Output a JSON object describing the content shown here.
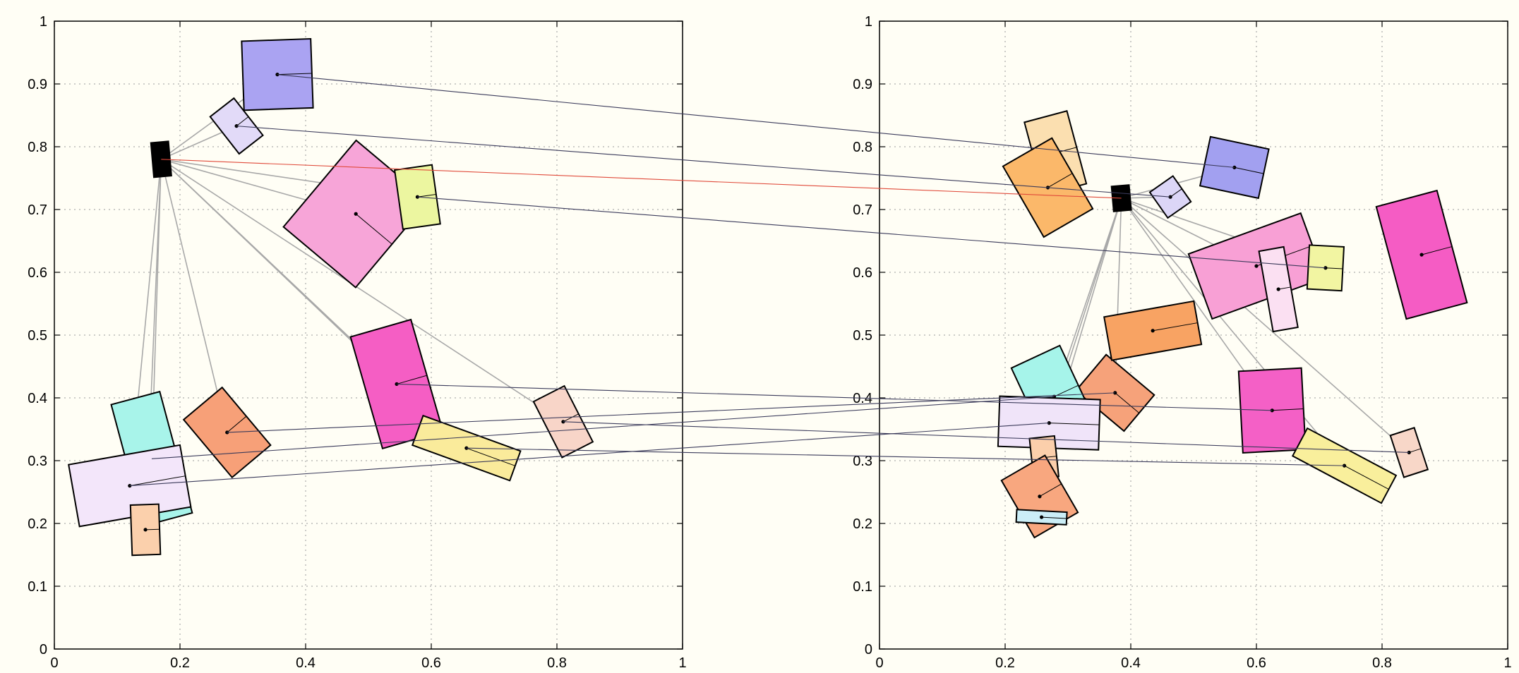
{
  "chart_data": [
    {
      "type": "scatter",
      "title": "",
      "xlabel": "",
      "ylabel": "",
      "xlim": [
        0,
        1
      ],
      "ylim": [
        0,
        1
      ],
      "x_ticks": [
        "0",
        "0.2",
        "0.4",
        "0.6",
        "0.8",
        "1"
      ],
      "y_ticks": [
        "0",
        "0.1",
        "0.2",
        "0.3",
        "0.4",
        "0.5",
        "0.6",
        "0.7",
        "0.8",
        "0.9",
        "1"
      ],
      "grid": true,
      "hub": {
        "x": 0.17,
        "y": 0.78
      },
      "rects": [
        {
          "id": "hub",
          "x": 0.17,
          "y": 0.78,
          "w": 0.028,
          "h": 0.055,
          "angle": 5,
          "color": "#000000"
        },
        {
          "id": "blue",
          "x": 0.355,
          "y": 0.915,
          "w": 0.11,
          "h": 0.11,
          "angle": 2,
          "color": "#aaa3f2"
        },
        {
          "id": "lavender",
          "x": 0.29,
          "y": 0.833,
          "w": 0.048,
          "h": 0.075,
          "angle": 38,
          "color": "#e2daf8"
        },
        {
          "id": "pink-big",
          "x": 0.48,
          "y": 0.693,
          "w": 0.15,
          "h": 0.18,
          "angle": -40,
          "color": "#f7a5d8"
        },
        {
          "id": "yellowgreen",
          "x": 0.578,
          "y": 0.72,
          "w": 0.06,
          "h": 0.095,
          "angle": 8,
          "color": "#ecf6a0"
        },
        {
          "id": "magenta",
          "x": 0.545,
          "y": 0.422,
          "w": 0.1,
          "h": 0.185,
          "angle": 16,
          "color": "#f55ec4"
        },
        {
          "id": "yellow",
          "x": 0.656,
          "y": 0.32,
          "w": 0.165,
          "h": 0.05,
          "angle": -20,
          "color": "#faeb9b"
        },
        {
          "id": "peach",
          "x": 0.81,
          "y": 0.362,
          "w": 0.055,
          "h": 0.1,
          "angle": 27,
          "color": "#f8d5c8"
        },
        {
          "id": "salmon",
          "x": 0.275,
          "y": 0.345,
          "w": 0.08,
          "h": 0.12,
          "angle": 40,
          "color": "#f7a078"
        },
        {
          "id": "cyan",
          "x": 0.155,
          "y": 0.303,
          "w": 0.08,
          "h": 0.2,
          "angle": 15,
          "color": "#a8f4ea"
        },
        {
          "id": "lilac",
          "x": 0.12,
          "y": 0.26,
          "w": 0.18,
          "h": 0.1,
          "angle": 10,
          "color": "#f3e6fa"
        },
        {
          "id": "peach2",
          "x": 0.145,
          "y": 0.19,
          "w": 0.045,
          "h": 0.08,
          "angle": 2,
          "color": "#fbd0ac"
        }
      ],
      "links": [
        [
          "hub",
          "blue"
        ],
        [
          "hub",
          "lavender"
        ],
        [
          "hub",
          "pink-big"
        ],
        [
          "hub",
          "yellowgreen"
        ],
        [
          "hub",
          "magenta"
        ],
        [
          "hub",
          "yellow"
        ],
        [
          "hub",
          "peach"
        ],
        [
          "hub",
          "salmon"
        ],
        [
          "hub",
          "cyan"
        ],
        [
          "hub",
          "lilac"
        ],
        [
          "hub",
          "peach2"
        ]
      ]
    },
    {
      "type": "scatter",
      "title": "",
      "xlabel": "",
      "ylabel": "",
      "xlim": [
        0,
        1
      ],
      "ylim": [
        0,
        1
      ],
      "x_ticks": [
        "0",
        "0.2",
        "0.4",
        "0.6",
        "0.8",
        "1"
      ],
      "y_ticks": [
        "0",
        "0.1",
        "0.2",
        "0.3",
        "0.4",
        "0.5",
        "0.6",
        "0.7",
        "0.8",
        "0.9",
        "1"
      ],
      "grid": true,
      "hub": {
        "x": 0.385,
        "y": 0.718
      },
      "rects": [
        {
          "id": "hub",
          "x": 0.385,
          "y": 0.718,
          "w": 0.028,
          "h": 0.04,
          "angle": 5,
          "color": "#000000"
        },
        {
          "id": "blue",
          "x": 0.565,
          "y": 0.767,
          "w": 0.095,
          "h": 0.08,
          "angle": -12,
          "color": "#a2a0f0"
        },
        {
          "id": "lavender",
          "x": 0.463,
          "y": 0.72,
          "w": 0.045,
          "h": 0.05,
          "angle": 35,
          "color": "#dcd6f7"
        },
        {
          "id": "pink-big",
          "x": 0.6,
          "y": 0.61,
          "w": 0.19,
          "h": 0.11,
          "angle": 20,
          "color": "#f8a0d5"
        },
        {
          "id": "yellowgreen",
          "x": 0.71,
          "y": 0.607,
          "w": 0.055,
          "h": 0.07,
          "angle": -3,
          "color": "#f2f5a2"
        },
        {
          "id": "magenta",
          "x": 0.625,
          "y": 0.38,
          "w": 0.1,
          "h": 0.13,
          "angle": 3,
          "color": "#f460c6"
        },
        {
          "id": "yellow",
          "x": 0.74,
          "y": 0.292,
          "w": 0.16,
          "h": 0.05,
          "angle": -28,
          "color": "#f9ef9c"
        },
        {
          "id": "peach",
          "x": 0.843,
          "y": 0.313,
          "w": 0.04,
          "h": 0.07,
          "angle": 18,
          "color": "#f8d7c8"
        },
        {
          "id": "salmon",
          "x": 0.375,
          "y": 0.408,
          "w": 0.1,
          "h": 0.075,
          "angle": -40,
          "color": "#f6a27a"
        },
        {
          "id": "cyan",
          "x": 0.278,
          "y": 0.402,
          "w": 0.085,
          "h": 0.14,
          "angle": 25,
          "color": "#a6f4ea"
        },
        {
          "id": "lilac",
          "x": 0.27,
          "y": 0.36,
          "w": 0.16,
          "h": 0.08,
          "angle": -2,
          "color": "#f0e4f9"
        },
        {
          "id": "peach2",
          "x": 0.262,
          "y": 0.305,
          "w": 0.04,
          "h": 0.065,
          "angle": 6,
          "color": "#fbcfab"
        },
        {
          "id": "tan",
          "x": 0.28,
          "y": 0.79,
          "w": 0.07,
          "h": 0.12,
          "angle": 15,
          "color": "#fbdfb0"
        },
        {
          "id": "orange",
          "x": 0.268,
          "y": 0.735,
          "w": 0.09,
          "h": 0.13,
          "angle": 30,
          "color": "#fbb86a"
        },
        {
          "id": "orange2",
          "x": 0.435,
          "y": 0.507,
          "w": 0.145,
          "h": 0.07,
          "angle": 10,
          "color": "#f8a363"
        },
        {
          "id": "pink-rect",
          "x": 0.635,
          "y": 0.573,
          "w": 0.04,
          "h": 0.13,
          "angle": 10,
          "color": "#fbe0f2"
        },
        {
          "id": "magenta2",
          "x": 0.863,
          "y": 0.628,
          "w": 0.1,
          "h": 0.185,
          "angle": 15,
          "color": "#f55cc4"
        },
        {
          "id": "salmon2",
          "x": 0.255,
          "y": 0.243,
          "w": 0.08,
          "h": 0.105,
          "angle": 30,
          "color": "#f8a77f"
        },
        {
          "id": "lightblue",
          "x": 0.258,
          "y": 0.21,
          "w": 0.08,
          "h": 0.02,
          "angle": -3,
          "color": "#cbeef7"
        }
      ],
      "links": [
        [
          "hub",
          "blue"
        ],
        [
          "hub",
          "lavender"
        ],
        [
          "hub",
          "pink-big"
        ],
        [
          "hub",
          "yellowgreen"
        ],
        [
          "hub",
          "magenta"
        ],
        [
          "hub",
          "yellow"
        ],
        [
          "hub",
          "peach"
        ],
        [
          "hub",
          "salmon"
        ],
        [
          "hub",
          "cyan"
        ],
        [
          "hub",
          "lilac"
        ],
        [
          "hub",
          "peach2"
        ]
      ]
    }
  ],
  "cross_links": [
    {
      "from": "blue",
      "to": "blue",
      "color": "#3a3a5a"
    },
    {
      "from": "lavender",
      "to": "lavender",
      "color": "#3a3a5a"
    },
    {
      "from": "hub",
      "to": "hub",
      "color": "#e04a3a"
    },
    {
      "from": "yellowgreen",
      "to": "yellowgreen",
      "color": "#3a3a5a"
    },
    {
      "from": "magenta",
      "to": "magenta",
      "color": "#3a3a5a"
    },
    {
      "from": "yellow",
      "to": "yellow",
      "color": "#3a3a5a"
    },
    {
      "from": "peach",
      "to": "peach",
      "color": "#3a3a5a"
    },
    {
      "from": "salmon",
      "to": "salmon",
      "color": "#3a3a5a"
    },
    {
      "from": "cyan",
      "to": "cyan",
      "color": "#3a3a5a"
    },
    {
      "from": "lilac",
      "to": "lilac",
      "color": "#3a3a5a"
    }
  ]
}
